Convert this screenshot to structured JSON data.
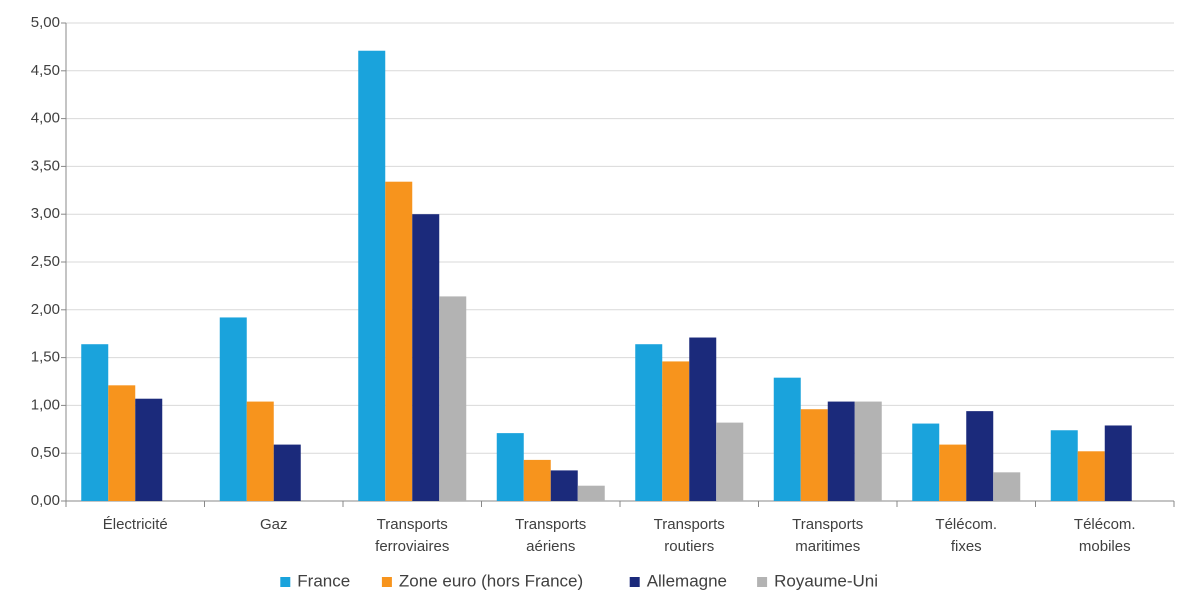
{
  "chart_data": {
    "type": "bar",
    "categories": [
      "Électricité",
      "Gaz",
      "Transports ferroviaires",
      "Transports aériens",
      "Transports routiers",
      "Transports maritimes",
      "Télécom. fixes",
      "Télécom. mobiles"
    ],
    "series": [
      {
        "name": "France",
        "color": "#1aa3dc",
        "values": [
          1.64,
          1.92,
          4.71,
          0.71,
          1.64,
          1.29,
          0.81,
          0.74
        ]
      },
      {
        "name": "Zone euro (hors France)",
        "color": "#f7941d",
        "values": [
          1.21,
          1.04,
          3.34,
          0.43,
          1.46,
          0.96,
          0.59,
          0.52
        ]
      },
      {
        "name": "Allemagne",
        "color": "#1b2a7b",
        "values": [
          1.07,
          0.59,
          3.0,
          0.32,
          1.71,
          1.04,
          0.94,
          0.79
        ]
      },
      {
        "name": "Royaume-Uni",
        "color": "#b3b3b3",
        "values": [
          null,
          null,
          2.14,
          0.16,
          0.82,
          1.04,
          0.3,
          null
        ]
      }
    ],
    "ylim": [
      0,
      5
    ],
    "yticks": [
      {
        "value": 0,
        "label": "0,00"
      },
      {
        "value": 0.5,
        "label": "0,50"
      },
      {
        "value": 1,
        "label": "1,00"
      },
      {
        "value": 1.5,
        "label": "1,50"
      },
      {
        "value": 2,
        "label": "2,00"
      },
      {
        "value": 2.5,
        "label": "2,50"
      },
      {
        "value": 3,
        "label": "3,00"
      },
      {
        "value": 3.5,
        "label": "3,50"
      },
      {
        "value": 4,
        "label": "4,00"
      },
      {
        "value": 4.5,
        "label": "4,50"
      },
      {
        "value": 5,
        "label": "5,00"
      }
    ],
    "grid": true,
    "legend": "bottom"
  }
}
